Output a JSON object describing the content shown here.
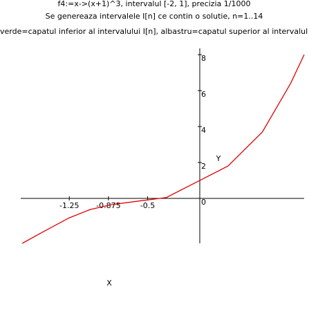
{
  "chart_data": {
    "type": "line",
    "title": "f4:=x->(x+1)^3, intervalul [-2, 1], precizia 1/1000",
    "subtitle": "Se genereaza intervalele I[n] ce contin o solutie, n=1..14",
    "note": "verde=capatul inferior al intervalului I[n], albastru=capatul superior al intervalul",
    "x_label": "X",
    "y_label": "Y",
    "x": [
      -1.7,
      -1.52,
      -1.25,
      -1.05,
      -0.85,
      -0.59,
      -0.32,
      0,
      0.27,
      0.6,
      0.87,
      1
    ],
    "series": [
      {
        "color": "#e00000",
        "values": [
          -2.5,
          -1.92,
          -1.08,
          -0.62,
          -0.35,
          -0.15,
          0.05,
          1,
          1.8,
          3.7,
          6.4,
          8
        ]
      }
    ],
    "xlim": [
      -1.715,
      1
    ],
    "ylim": [
      -2.5,
      8.35
    ],
    "xticks": [
      -1.25,
      -0.875,
      -0.5
    ],
    "yticks": [
      0,
      2,
      4,
      6,
      8
    ]
  }
}
